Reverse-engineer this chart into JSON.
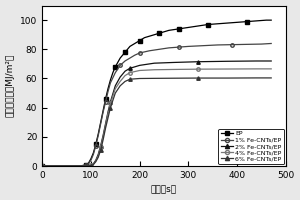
{
  "xlabel": "时间（s）",
  "ylabel": "总热释放量（MJ/m²）",
  "xlim": [
    0,
    500
  ],
  "ylim": [
    0,
    110
  ],
  "xticks": [
    0,
    100,
    200,
    300,
    400,
    500
  ],
  "yticks": [
    0,
    20,
    40,
    60,
    80,
    100
  ],
  "series": [
    {
      "label": "EP",
      "marker": "s",
      "marker_filled": true,
      "color": "#000000",
      "x": [
        0,
        50,
        70,
        80,
        90,
        95,
        100,
        105,
        110,
        115,
        120,
        125,
        130,
        135,
        140,
        145,
        150,
        155,
        160,
        165,
        170,
        175,
        180,
        190,
        200,
        210,
        220,
        230,
        240,
        250,
        260,
        270,
        280,
        290,
        300,
        320,
        340,
        360,
        380,
        400,
        420,
        440,
        460,
        470
      ],
      "y": [
        0,
        0,
        0,
        0.2,
        0.8,
        2,
        5,
        9,
        15,
        22,
        30,
        38,
        46,
        53,
        59,
        64,
        68,
        71,
        74,
        76,
        78,
        80,
        82,
        84,
        86,
        88,
        89,
        90,
        91,
        92,
        93,
        93.5,
        94,
        94.5,
        95,
        96,
        97,
        97.5,
        98,
        98.5,
        99,
        99.5,
        100,
        100
      ]
    },
    {
      "label": "1% Fe-CNTs/EP",
      "marker": "o",
      "marker_filled": false,
      "color": "#444444",
      "x": [
        0,
        50,
        70,
        80,
        90,
        95,
        100,
        105,
        110,
        115,
        120,
        125,
        130,
        135,
        140,
        150,
        160,
        170,
        180,
        190,
        200,
        220,
        240,
        260,
        280,
        300,
        330,
        360,
        390,
        420,
        450,
        470
      ],
      "y": [
        0,
        0,
        0,
        0.1,
        0.5,
        1.5,
        4,
        8,
        14,
        21,
        29,
        37,
        44,
        51,
        57,
        64,
        69,
        72,
        74,
        76,
        77.5,
        79,
        80,
        81,
        81.5,
        82,
        82.5,
        83,
        83.2,
        83.4,
        83.6,
        84
      ]
    },
    {
      "label": "2% Fe-CNTs/EP",
      "marker": "^",
      "marker_filled": true,
      "color": "#111111",
      "x": [
        0,
        60,
        80,
        90,
        100,
        105,
        110,
        115,
        120,
        125,
        130,
        135,
        140,
        150,
        160,
        170,
        180,
        200,
        230,
        270,
        320,
        380,
        440,
        470
      ],
      "y": [
        0,
        0,
        0,
        0.1,
        0.5,
        1.5,
        4,
        8,
        14,
        21,
        29,
        37,
        44,
        55,
        61,
        65,
        67,
        69,
        70.5,
        71,
        71.5,
        71.8,
        72,
        72
      ]
    },
    {
      "label": "4% Fe-CNTs/EP",
      "marker": "o",
      "marker_filled": false,
      "color": "#777777",
      "x": [
        0,
        60,
        80,
        90,
        100,
        105,
        110,
        115,
        120,
        125,
        130,
        135,
        140,
        150,
        160,
        170,
        180,
        200,
        230,
        270,
        320,
        380,
        440,
        470
      ],
      "y": [
        0,
        0,
        0,
        0.1,
        0.4,
        1.2,
        3.5,
        7,
        13,
        20,
        28,
        36,
        43,
        53,
        58,
        62,
        64,
        65.5,
        66,
        66.2,
        66.4,
        66.5,
        66.6,
        66.6
      ]
    },
    {
      "label": "6% Fe-CNTs/EP",
      "marker": "^",
      "marker_filled": true,
      "color": "#333333",
      "x": [
        0,
        60,
        80,
        90,
        100,
        105,
        110,
        115,
        120,
        125,
        130,
        135,
        140,
        150,
        160,
        170,
        180,
        200,
        230,
        270,
        320,
        380,
        440,
        470
      ],
      "y": [
        0,
        0,
        0,
        0.1,
        0.3,
        1,
        3,
        6,
        11,
        18,
        26,
        33,
        40,
        50,
        55,
        58,
        59.5,
        60,
        60.1,
        60.2,
        60.3,
        60.3,
        60.4,
        60.4
      ]
    }
  ],
  "legend_loc": "lower right",
  "bg_color": "#e8e8e8",
  "plot_bg": "#ffffff",
  "figsize": [
    3.0,
    2.0
  ],
  "dpi": 100,
  "marker_size": 2.5,
  "line_width": 0.9,
  "markevery": 4
}
